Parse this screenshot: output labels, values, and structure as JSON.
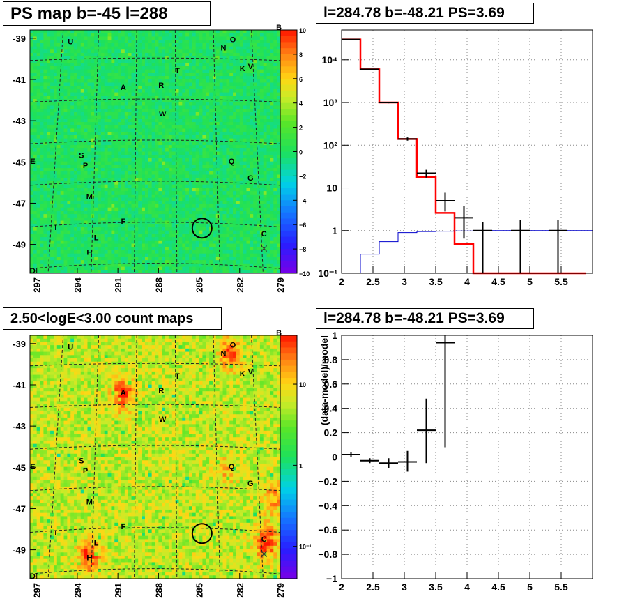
{
  "panels": {
    "ps_map_title": "PS map b=-45 l=288",
    "count_map_title": "2.50<logE<3.00 count maps",
    "spectrum_title": "l=284.78 b=-48.21 PS=3.69",
    "residual_title": "l=284.78 b=-48.21 PS=3.69"
  },
  "colors": {
    "model": "#ff0000",
    "background_model": "#0000cc",
    "data": "#000000",
    "ps_map_base": "#3ddc45",
    "count_map_base": "#f2d84a"
  },
  "chart_data": [
    {
      "type": "heatmap",
      "name": "ps-map",
      "x_ticks": [
        "297",
        "294",
        "291",
        "288",
        "285",
        "282",
        "279"
      ],
      "y_ticks": [
        "-39",
        "-41",
        "-43",
        "-45",
        "-47",
        "-49"
      ],
      "xlim": [
        297.5,
        279.0
      ],
      "ylim": [
        -50.4,
        -38.6
      ],
      "colorbar_ticks": [
        "10",
        "8",
        "6",
        "4",
        "2",
        "0",
        "−2",
        "−4",
        "−6",
        "−8",
        "−10"
      ],
      "colorbar_range": [
        -10,
        10
      ],
      "source_labels": [
        {
          "label": "U",
          "l": 294.5,
          "b": -39.3
        },
        {
          "label": "N",
          "l": 283.2,
          "b": -39.6
        },
        {
          "label": "O",
          "l": 282.5,
          "b": -39.2
        },
        {
          "label": "T",
          "l": 286.6,
          "b": -40.7
        },
        {
          "label": "K",
          "l": 281.8,
          "b": -40.6
        },
        {
          "label": "V",
          "l": 281.2,
          "b": -40.5
        },
        {
          "label": "A",
          "l": 290.6,
          "b": -41.5
        },
        {
          "label": "R",
          "l": 287.8,
          "b": -41.4
        },
        {
          "label": "W",
          "l": 287.7,
          "b": -42.8
        },
        {
          "label": "S",
          "l": 293.7,
          "b": -44.8
        },
        {
          "label": "P",
          "l": 293.4,
          "b": -45.3
        },
        {
          "label": "Q",
          "l": 282.6,
          "b": -45.1
        },
        {
          "label": "G",
          "l": 281.2,
          "b": -45.9
        },
        {
          "label": "M",
          "l": 293.1,
          "b": -46.8
        },
        {
          "label": "F",
          "l": 290.6,
          "b": -48.0
        },
        {
          "label": "I",
          "l": 295.6,
          "b": -48.3
        },
        {
          "label": "L",
          "l": 292.6,
          "b": -48.8
        },
        {
          "label": "H",
          "l": 293.1,
          "b": -49.5
        },
        {
          "label": "C",
          "l": 280.2,
          "b": -48.6
        },
        {
          "label": "E",
          "l": 297.3,
          "b": -45.1
        },
        {
          "label": "B",
          "l": 279.1,
          "b": -38.6
        },
        {
          "label": "D",
          "l": 297.3,
          "b": -50.4
        }
      ],
      "target": {
        "l": 284.78,
        "b": -48.21
      }
    },
    {
      "type": "heatmap",
      "name": "count-map",
      "x_ticks": [
        "297",
        "294",
        "291",
        "288",
        "285",
        "282",
        "279"
      ],
      "y_ticks": [
        "-39",
        "-41",
        "-43",
        "-45",
        "-47",
        "-49"
      ],
      "xlim": [
        297.5,
        279.0
      ],
      "ylim": [
        -50.4,
        -38.6
      ],
      "colorbar_ticks": [
        "10",
        "1",
        "10⁻¹"
      ],
      "colorbar_range": [
        0.04,
        40
      ],
      "colorbar_scale": "log",
      "source_labels": [
        {
          "label": "U",
          "l": 294.5,
          "b": -39.3
        },
        {
          "label": "N",
          "l": 283.2,
          "b": -39.6
        },
        {
          "label": "O",
          "l": 282.5,
          "b": -39.2
        },
        {
          "label": "T",
          "l": 286.6,
          "b": -40.7
        },
        {
          "label": "K",
          "l": 281.8,
          "b": -40.6
        },
        {
          "label": "V",
          "l": 281.2,
          "b": -40.5
        },
        {
          "label": "A",
          "l": 290.6,
          "b": -41.5
        },
        {
          "label": "R",
          "l": 287.8,
          "b": -41.4
        },
        {
          "label": "W",
          "l": 287.7,
          "b": -42.8
        },
        {
          "label": "S",
          "l": 293.7,
          "b": -44.8
        },
        {
          "label": "P",
          "l": 293.4,
          "b": -45.3
        },
        {
          "label": "Q",
          "l": 282.6,
          "b": -45.1
        },
        {
          "label": "G",
          "l": 281.2,
          "b": -45.9
        },
        {
          "label": "M",
          "l": 293.1,
          "b": -46.8
        },
        {
          "label": "F",
          "l": 290.6,
          "b": -48.0
        },
        {
          "label": "I",
          "l": 295.6,
          "b": -48.3
        },
        {
          "label": "L",
          "l": 292.6,
          "b": -48.8
        },
        {
          "label": "H",
          "l": 293.1,
          "b": -49.5
        },
        {
          "label": "C",
          "l": 280.2,
          "b": -48.6
        },
        {
          "label": "E",
          "l": 297.3,
          "b": -45.1
        },
        {
          "label": "B",
          "l": 279.1,
          "b": -38.6
        },
        {
          "label": "D",
          "l": 297.3,
          "b": -50.4
        }
      ],
      "target": {
        "l": 284.78,
        "b": -48.21
      }
    },
    {
      "type": "line",
      "name": "spectrum",
      "xlim": [
        2,
        6
      ],
      "ylim": [
        0.1,
        50000
      ],
      "yscale": "log",
      "grid": true,
      "x_ticks": [
        "2",
        "2.5",
        "3",
        "3.5",
        "4",
        "4.5",
        "5",
        "5.5"
      ],
      "y_ticks": [
        "10⁻¹",
        "1",
        "10",
        "10²",
        "10³",
        "10⁴"
      ],
      "bin_edges": [
        2.0,
        2.3,
        2.6,
        2.9,
        3.2,
        3.5,
        3.8,
        4.1,
        4.4,
        4.7,
        5.0,
        5.3,
        5.6,
        5.9
      ],
      "model": [
        30000,
        6000,
        1000,
        140,
        18,
        2.6,
        0.48,
        0.1,
        0.1,
        0.1,
        0.1,
        0.1,
        0.1
      ],
      "background_model": [
        0.1,
        0.28,
        0.55,
        0.9,
        0.95,
        0.97,
        0.98,
        0.99,
        1.0,
        1.0,
        1.0,
        1.0,
        1.0
      ],
      "data_points": [
        {
          "x": 2.15,
          "y": 30000,
          "ylo": 29500,
          "yhi": 30500
        },
        {
          "x": 2.45,
          "y": 6000,
          "ylo": 5900,
          "yhi": 6100
        },
        {
          "x": 2.75,
          "y": 1000,
          "ylo": 960,
          "yhi": 1040
        },
        {
          "x": 3.05,
          "y": 140,
          "ylo": 128,
          "yhi": 152
        },
        {
          "x": 3.35,
          "y": 22,
          "ylo": 17.5,
          "yhi": 26.5
        },
        {
          "x": 3.65,
          "y": 5,
          "ylo": 2.8,
          "yhi": 7.7
        },
        {
          "x": 3.95,
          "y": 2,
          "ylo": 0.65,
          "yhi": 3.8
        },
        {
          "x": 4.25,
          "y": 1,
          "ylo": 0.1,
          "yhi": 1.6
        },
        {
          "x": 4.85,
          "y": 1,
          "ylo": 0.1,
          "yhi": 1.8
        },
        {
          "x": 5.45,
          "y": 1,
          "ylo": 0.1,
          "yhi": 1.8
        }
      ]
    },
    {
      "type": "scatter",
      "name": "residual",
      "xlim": [
        2,
        6
      ],
      "ylim": [
        -1,
        1
      ],
      "grid": true,
      "ylabel": "(data-model)/model",
      "x_ticks": [
        "2",
        "2.5",
        "3",
        "3.5",
        "4",
        "4.5",
        "5",
        "5.5"
      ],
      "y_ticks": [
        "−1",
        "−0.8",
        "−0.6",
        "−0.4",
        "−0.2",
        "0",
        "0.2",
        "0.4",
        "0.6",
        "0.8",
        "1"
      ],
      "data_points": [
        {
          "x": 2.15,
          "y": 0.02,
          "ylo": 0.0,
          "yhi": 0.04
        },
        {
          "x": 2.45,
          "y": -0.03,
          "ylo": -0.05,
          "yhi": -0.01
        },
        {
          "x": 2.75,
          "y": -0.05,
          "ylo": -0.09,
          "yhi": -0.01
        },
        {
          "x": 3.05,
          "y": -0.04,
          "ylo": -0.12,
          "yhi": 0.05
        },
        {
          "x": 3.35,
          "y": 0.22,
          "ylo": -0.05,
          "yhi": 0.48
        },
        {
          "x": 3.65,
          "y": 0.94,
          "ylo": 0.08,
          "yhi": 1.0
        }
      ]
    }
  ]
}
